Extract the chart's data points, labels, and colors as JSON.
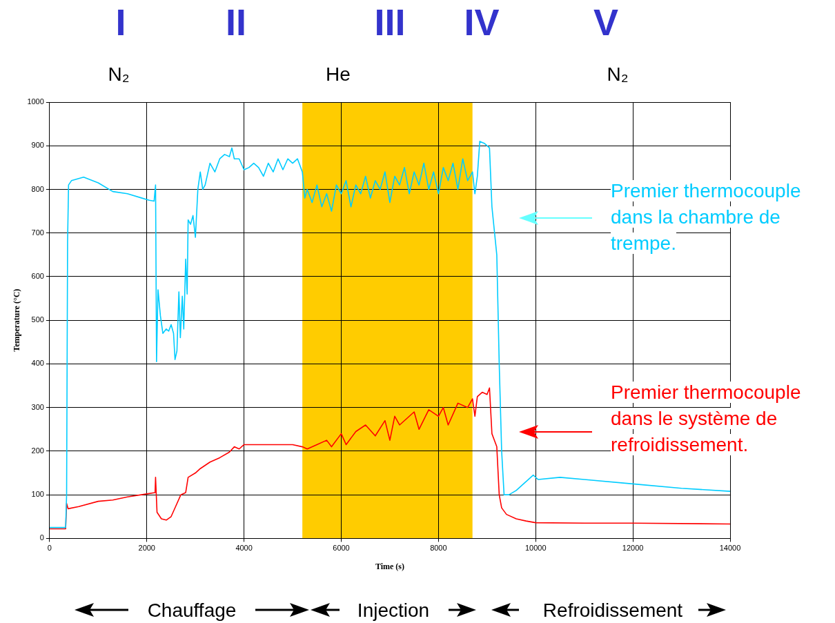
{
  "chart_data": {
    "type": "line",
    "xlabel": "Time (s)",
    "ylabel": "Temperature (°C)",
    "xlim": [
      0,
      14000
    ],
    "xticks": [
      0,
      2000,
      4000,
      6000,
      8000,
      10000,
      12000,
      14000
    ],
    "ylim": [
      0,
      1000
    ],
    "yticks": [
      0,
      100,
      200,
      300,
      400,
      500,
      600,
      700,
      800,
      900,
      1000
    ],
    "grid": true,
    "legend": "right",
    "marker": "none",
    "line_style": "solid",
    "bands": [
      {
        "axis": "x",
        "from": 5200,
        "to": 8700,
        "color": "#ffcc00"
      }
    ],
    "annotations": [
      "I",
      "II",
      "III",
      "IV",
      "V",
      "N₂",
      "He",
      "N₂",
      "Chauffage",
      "Injection",
      "Refroidissement"
    ],
    "series": [
      {
        "name": "Premier thermocouple dans la chambre de trempe.",
        "color": "#00ccff",
        "x": [
          0,
          330,
          350,
          370,
          390,
          450,
          700,
          1000,
          1300,
          1600,
          1900,
          2050,
          2150,
          2180,
          2200,
          2230,
          2280,
          2330,
          2400,
          2450,
          2500,
          2550,
          2580,
          2620,
          2660,
          2690,
          2730,
          2760,
          2800,
          2830,
          2850,
          2900,
          2950,
          3000,
          3050,
          3100,
          3150,
          3200,
          3300,
          3400,
          3500,
          3600,
          3700,
          3750,
          3800,
          3900,
          4000,
          4100,
          4200,
          4300,
          4400,
          4500,
          4600,
          4700,
          4800,
          4900,
          5000,
          5100,
          5200,
          5250,
          5300,
          5400,
          5500,
          5600,
          5700,
          5800,
          5900,
          6000,
          6100,
          6200,
          6300,
          6400,
          6500,
          6600,
          6700,
          6800,
          6900,
          7000,
          7100,
          7200,
          7300,
          7400,
          7500,
          7600,
          7700,
          7800,
          7900,
          8000,
          8100,
          8200,
          8300,
          8400,
          8500,
          8600,
          8700,
          8750,
          8800,
          8850,
          8950,
          9050,
          9100,
          9200,
          9250,
          9300,
          9350,
          9450,
          9600,
          9800,
          9950,
          10050,
          10500,
          11000,
          12000,
          13000,
          14000
        ],
        "values": [
          25,
          25,
          100,
          680,
          810,
          820,
          828,
          815,
          795,
          790,
          780,
          775,
          773,
          810,
          405,
          570,
          510,
          470,
          480,
          475,
          490,
          470,
          410,
          430,
          565,
          460,
          555,
          480,
          640,
          560,
          730,
          720,
          740,
          690,
          800,
          840,
          800,
          810,
          860,
          840,
          870,
          880,
          875,
          895,
          870,
          870,
          845,
          850,
          860,
          850,
          830,
          860,
          840,
          870,
          845,
          870,
          860,
          870,
          840,
          780,
          800,
          770,
          810,
          760,
          790,
          750,
          810,
          790,
          820,
          760,
          810,
          790,
          830,
          780,
          820,
          800,
          840,
          770,
          830,
          810,
          850,
          790,
          840,
          810,
          860,
          800,
          840,
          790,
          850,
          820,
          860,
          800,
          870,
          820,
          840,
          790,
          830,
          910,
          905,
          895,
          760,
          650,
          400,
          200,
          100,
          100,
          110,
          130,
          145,
          135,
          140,
          135,
          125,
          115,
          108
        ]
      },
      {
        "name": "Premier thermocouple dans le système de refroidissement.",
        "color": "#ff0000",
        "x": [
          0,
          330,
          350,
          380,
          600,
          1000,
          1300,
          1600,
          2000,
          2170,
          2180,
          2210,
          2300,
          2400,
          2500,
          2600,
          2700,
          2800,
          2850,
          3000,
          3100,
          3300,
          3500,
          3700,
          3800,
          3900,
          4000,
          4500,
          5000,
          5200,
          5300,
          5500,
          5700,
          5800,
          6000,
          6100,
          6300,
          6500,
          6700,
          6900,
          7000,
          7100,
          7200,
          7500,
          7600,
          7800,
          8000,
          8100,
          8200,
          8400,
          8600,
          8700,
          8750,
          8800,
          8900,
          9000,
          9050,
          9100,
          9200,
          9250,
          9300,
          9400,
          9600,
          9800,
          10000,
          11000,
          12000,
          14000
        ],
        "values": [
          22,
          22,
          80,
          68,
          73,
          85,
          88,
          95,
          102,
          105,
          140,
          60,
          45,
          42,
          50,
          75,
          100,
          105,
          140,
          150,
          160,
          175,
          185,
          198,
          210,
          205,
          215,
          215,
          215,
          210,
          205,
          215,
          225,
          210,
          240,
          215,
          245,
          260,
          235,
          270,
          225,
          280,
          260,
          290,
          250,
          295,
          280,
          300,
          260,
          310,
          300,
          320,
          280,
          325,
          335,
          330,
          345,
          240,
          210,
          100,
          70,
          55,
          45,
          40,
          36,
          35,
          35,
          33
        ]
      }
    ]
  }
}
